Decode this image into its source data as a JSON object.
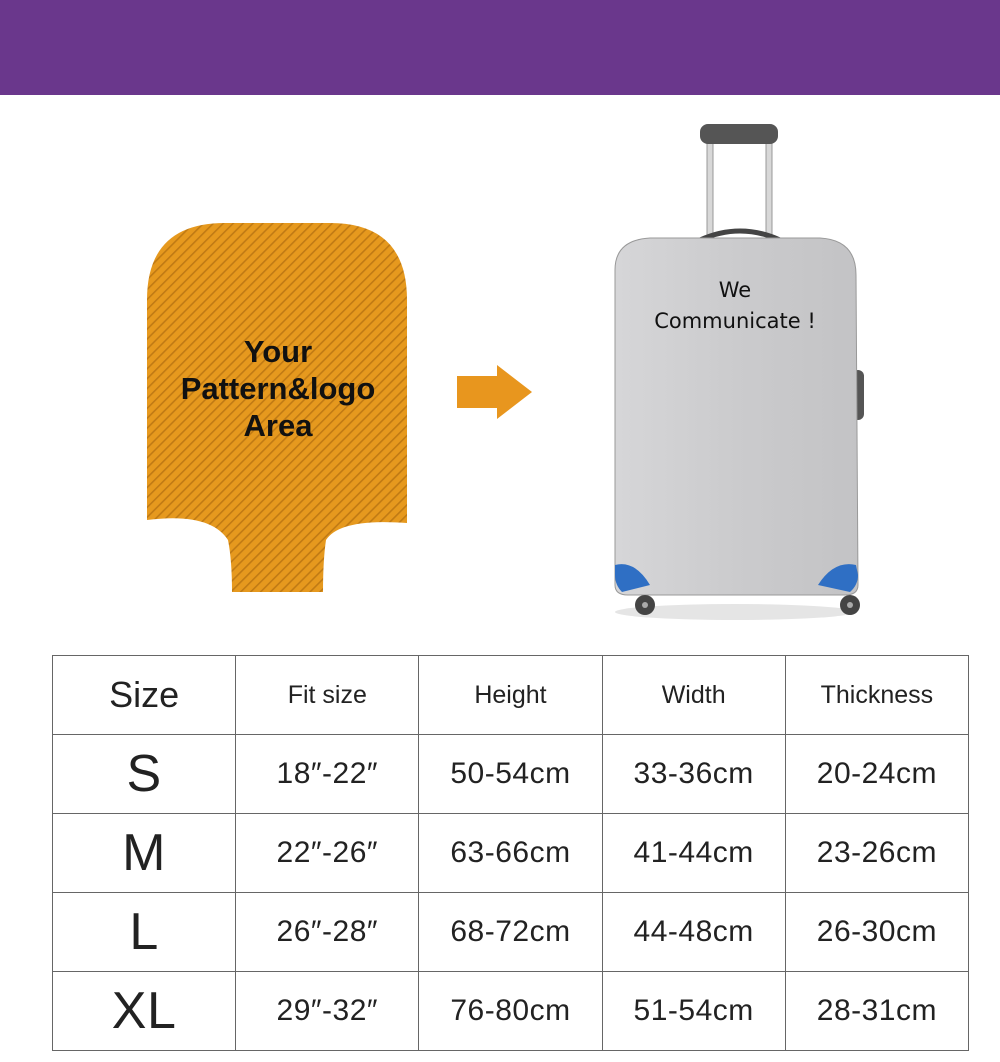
{
  "colors": {
    "banner": "#6a378c",
    "pattern": "#e6991e",
    "arrow": "#e8961e",
    "cover": "#c9c9cb",
    "corner_accent": "#2f6fc4"
  },
  "pattern_area": {
    "lines": [
      "Your",
      "Pattern&logo",
      "Area"
    ]
  },
  "arrow_icon": "arrow-right-icon",
  "suitcase": {
    "lines": [
      "We",
      "Communicate !"
    ]
  },
  "size_table": {
    "headers": [
      "Size",
      "Fit size",
      "Height",
      "Width",
      "Thickness"
    ],
    "rows": [
      [
        "S",
        "18″-22″",
        "50-54cm",
        "33-36cm",
        "20-24cm"
      ],
      [
        "M",
        "22″-26″",
        "63-66cm",
        "41-44cm",
        "23-26cm"
      ],
      [
        "L",
        "26″-28″",
        "68-72cm",
        "44-48cm",
        "26-30cm"
      ],
      [
        "XL",
        "29″-32″",
        "76-80cm",
        "51-54cm",
        "28-31cm"
      ]
    ]
  }
}
